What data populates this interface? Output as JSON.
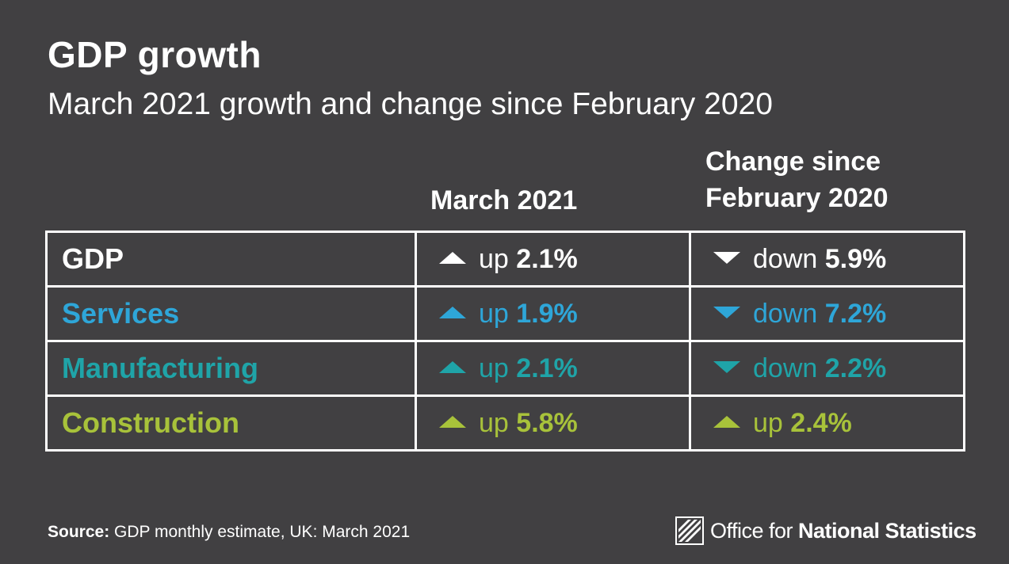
{
  "colors": {
    "background": "#414042",
    "text": "#ffffff",
    "gdp": "#ffffff",
    "services": "#2ea6d8",
    "manufacturing": "#1fa4a8",
    "construction": "#a8c23a"
  },
  "title": "GDP growth",
  "subtitle": "March 2021 growth and change since February 2020",
  "columns": {
    "march_line1": "March 2021",
    "change_line1": "Change since",
    "change_line2": "February 2020"
  },
  "rows": [
    {
      "label": "GDP",
      "color": "#ffffff",
      "march": {
        "direction": "up",
        "word": "up",
        "value": "2.1%"
      },
      "change": {
        "direction": "down",
        "word": "down",
        "value": "5.9%"
      }
    },
    {
      "label": "Services",
      "color": "#2ea6d8",
      "march": {
        "direction": "up",
        "word": "up",
        "value": "1.9%"
      },
      "change": {
        "direction": "down",
        "word": "down",
        "value": "7.2%"
      }
    },
    {
      "label": "Manufacturing",
      "color": "#1fa4a8",
      "march": {
        "direction": "up",
        "word": "up",
        "value": "2.1%"
      },
      "change": {
        "direction": "down",
        "word": "down",
        "value": "2.2%"
      }
    },
    {
      "label": "Construction",
      "color": "#a8c23a",
      "march": {
        "direction": "up",
        "word": "up",
        "value": "5.8%"
      },
      "change": {
        "direction": "up",
        "word": "up",
        "value": "2.4%"
      }
    }
  ],
  "source": {
    "prefix": "Source:",
    "text": "GDP monthly estimate, UK: March 2021"
  },
  "logo": {
    "icon": "ons-logo-icon",
    "text_regular": "Office for ",
    "text_bold": "National Statistics"
  }
}
